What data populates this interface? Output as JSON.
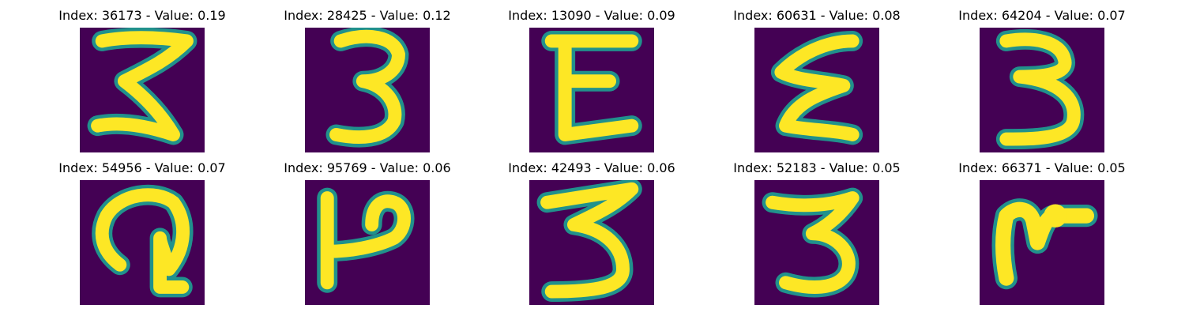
{
  "figure": {
    "background": "#ffffff",
    "colormap": {
      "background": "#440154",
      "edge": "#21918c",
      "stroke": "#fde725"
    }
  },
  "panels": [
    {
      "title": "Index: 36173 - Value: 0.19",
      "glyph": "3-variant"
    },
    {
      "title": "Index: 28425 - Value: 0.12",
      "glyph": "3"
    },
    {
      "title": "Index: 13090 - Value: 0.09",
      "glyph": "E-like"
    },
    {
      "title": "Index: 60631 - Value: 0.08",
      "glyph": "3-variant"
    },
    {
      "title": "Index: 64204 - Value: 0.07",
      "glyph": "3"
    },
    {
      "title": "Index: 54956 - Value: 0.07",
      "glyph": "G-like"
    },
    {
      "title": "Index: 95769 - Value: 0.06",
      "glyph": "P-like"
    },
    {
      "title": "Index: 42493 - Value: 0.06",
      "glyph": "3"
    },
    {
      "title": "Index: 52183 - Value: 0.05",
      "glyph": "3"
    },
    {
      "title": "Index: 66371 - Value: 0.05",
      "glyph": "r-like"
    }
  ]
}
